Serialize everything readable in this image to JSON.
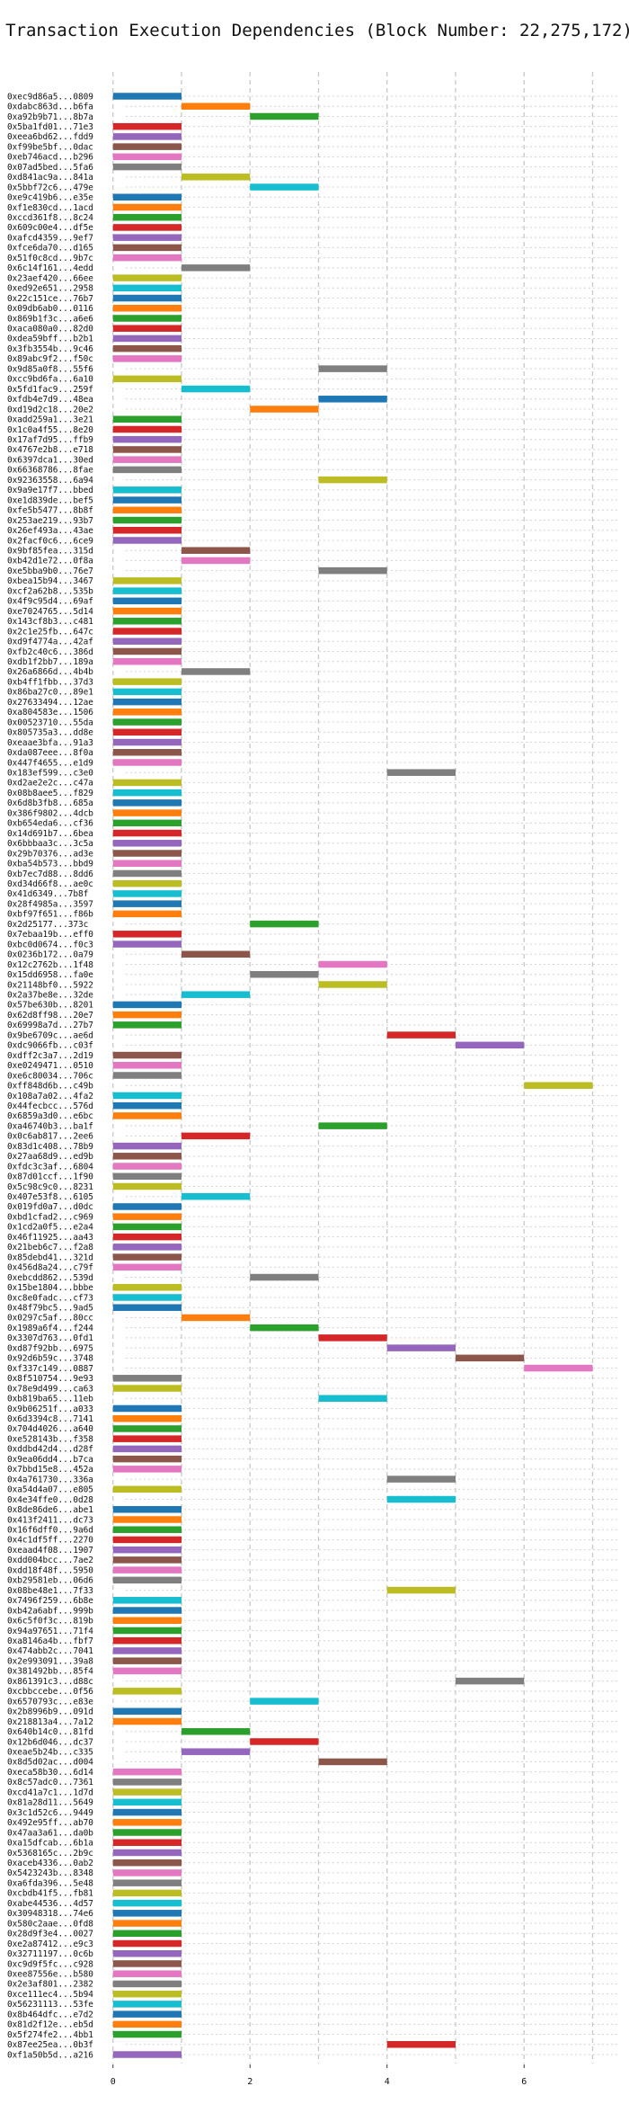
{
  "chart_data": {
    "type": "bar",
    "orientation": "horizontal",
    "title": "Transaction Execution Dependencies (Block Number: 22,275,172)",
    "xlabel": "",
    "ylabel": "",
    "xlim": [
      -0.6,
      7.4
    ],
    "xticks": [
      0,
      2,
      4,
      6
    ],
    "grid": true,
    "bar_duration": 1,
    "palette": {
      "blue": "#1f77b4",
      "orange": "#ff7f0e",
      "green": "#2ca02c",
      "red": "#d62728",
      "purple": "#9467bd",
      "brown": "#8c564b",
      "pink": "#e377c2",
      "gray": "#7f7f7f",
      "olive": "#bcbd22",
      "cyan": "#17becf"
    },
    "color_cycle": [
      "blue",
      "orange",
      "green",
      "red",
      "purple",
      "brown",
      "pink",
      "gray",
      "olive",
      "cyan"
    ],
    "transactions": [
      {
        "label": "0xec9d86a5...0809",
        "start": 0
      },
      {
        "label": "0xdabc863d...b6fa",
        "start": 1
      },
      {
        "label": "0xa92b9b71...8b7a",
        "start": 2
      },
      {
        "label": "0x5ba1fd01...71e3",
        "start": 0
      },
      {
        "label": "0xeea6bd62...fdd9",
        "start": 0
      },
      {
        "label": "0xf99be5bf...0dac",
        "start": 0
      },
      {
        "label": "0xeb746acd...b296",
        "start": 0
      },
      {
        "label": "0x07ad5bed...5fa6",
        "start": 0
      },
      {
        "label": "0xd841ac9a...841a",
        "start": 1
      },
      {
        "label": "0x5bbf72c6...479e",
        "start": 2
      },
      {
        "label": "0xe9c419b6...e35e",
        "start": 0
      },
      {
        "label": "0xf1e830cd...1acd",
        "start": 0
      },
      {
        "label": "0xccd361f8...8c24",
        "start": 0
      },
      {
        "label": "0x609c00e4...df5e",
        "start": 0
      },
      {
        "label": "0xafcd4359...9ef7",
        "start": 0
      },
      {
        "label": "0xfce6da70...d165",
        "start": 0
      },
      {
        "label": "0x51f0c8cd...9b7c",
        "start": 0
      },
      {
        "label": "0x6c14f161...4edd",
        "start": 1
      },
      {
        "label": "0x23aef420...66ee",
        "start": 0
      },
      {
        "label": "0xed92e651...2958",
        "start": 0
      },
      {
        "label": "0x22c151ce...76b7",
        "start": 0
      },
      {
        "label": "0x09db6ab0...0116",
        "start": 0
      },
      {
        "label": "0x869b1f3c...a6e6",
        "start": 0
      },
      {
        "label": "0xaca080a0...82d0",
        "start": 0
      },
      {
        "label": "0xdea59bff...b2b1",
        "start": 0
      },
      {
        "label": "0x3fb3554b...9c46",
        "start": 0
      },
      {
        "label": "0x89abc9f2...f50c",
        "start": 0
      },
      {
        "label": "0x9d85a0f8...55f6",
        "start": 3
      },
      {
        "label": "0xcc9bd6fa...6a10",
        "start": 0
      },
      {
        "label": "0x5fd1fac9...259f",
        "start": 1
      },
      {
        "label": "0xfdb4e7d9...48ea",
        "start": 3
      },
      {
        "label": "0xd19d2c18...20e2",
        "start": 2
      },
      {
        "label": "0xadd259a1...3e21",
        "start": 0
      },
      {
        "label": "0x1c0a4f55...8e20",
        "start": 0
      },
      {
        "label": "0x17af7d95...ffb9",
        "start": 0
      },
      {
        "label": "0x4767e2b8...e718",
        "start": 0
      },
      {
        "label": "0x6397dca1...30ed",
        "start": 0
      },
      {
        "label": "0x66368786...8fae",
        "start": 0
      },
      {
        "label": "0x92363558...6a94",
        "start": 3
      },
      {
        "label": "0x9a9e17f7...bbed",
        "start": 0
      },
      {
        "label": "0xe1d839de...bef5",
        "start": 0
      },
      {
        "label": "0xfe5b5477...8b8f",
        "start": 0
      },
      {
        "label": "0x253ae219...93b7",
        "start": 0
      },
      {
        "label": "0x26ef493a...43ae",
        "start": 0
      },
      {
        "label": "0x2facf0c6...6ce9",
        "start": 0
      },
      {
        "label": "0x9bf85fea...315d",
        "start": 1
      },
      {
        "label": "0xb42d1e72...0f8a",
        "start": 1
      },
      {
        "label": "0xe5bba9b0...76e7",
        "start": 3
      },
      {
        "label": "0xbea15b94...3467",
        "start": 0
      },
      {
        "label": "0xcf2a62b8...535b",
        "start": 0
      },
      {
        "label": "0x4f9c95d4...69af",
        "start": 0
      },
      {
        "label": "0xe7024765...5d14",
        "start": 0
      },
      {
        "label": "0x143cf8b3...c481",
        "start": 0
      },
      {
        "label": "0x2c1e25fb...647c",
        "start": 0
      },
      {
        "label": "0xd9f4774a...42af",
        "start": 0
      },
      {
        "label": "0xfb2c40c6...386d",
        "start": 0
      },
      {
        "label": "0xdb1f2bb7...189a",
        "start": 0
      },
      {
        "label": "0x26a6866d...4b4b",
        "start": 1
      },
      {
        "label": "0xb4ff1fbb...37d3",
        "start": 0
      },
      {
        "label": "0x86ba27c0...89e1",
        "start": 0
      },
      {
        "label": "0x27633494...12ae",
        "start": 0
      },
      {
        "label": "0xa804583e...1506",
        "start": 0
      },
      {
        "label": "0x00523710...55da",
        "start": 0
      },
      {
        "label": "0x805735a3...dd8e",
        "start": 0
      },
      {
        "label": "0xeaae3bfa...91a3",
        "start": 0
      },
      {
        "label": "0xda087eee...8f0a",
        "start": 0
      },
      {
        "label": "0x447f4655...e1d9",
        "start": 0
      },
      {
        "label": "0x183ef599...c3e0",
        "start": 4
      },
      {
        "label": "0xd2ae2e2c...c47a",
        "start": 0
      },
      {
        "label": "0x08b8aee5...f829",
        "start": 0
      },
      {
        "label": "0x6d8b3fb8...685a",
        "start": 0
      },
      {
        "label": "0x386f9802...4dcb",
        "start": 0
      },
      {
        "label": "0xb654eda6...cf36",
        "start": 0
      },
      {
        "label": "0x14d691b7...6bea",
        "start": 0
      },
      {
        "label": "0x6bbbaa3c...3c5a",
        "start": 0
      },
      {
        "label": "0x29b70376...ad3e",
        "start": 0
      },
      {
        "label": "0xba54b573...bbd9",
        "start": 0
      },
      {
        "label": "0xb7ec7d88...8dd6",
        "start": 0
      },
      {
        "label": "0xd34d66f8...ae0c",
        "start": 0
      },
      {
        "label": "0x41d6349...7b8f",
        "start": 0
      },
      {
        "label": "0x28f4985a...3597",
        "start": 0
      },
      {
        "label": "0xbf97f651...f86b",
        "start": 0
      },
      {
        "label": "0x2d25177...373c",
        "start": 2
      },
      {
        "label": "0x7ebaa19b...eff0",
        "start": 0
      },
      {
        "label": "0xbc0d0674...f0c3",
        "start": 0
      },
      {
        "label": "0x0236b172...0a79",
        "start": 1
      },
      {
        "label": "0x12c2762b...1f48",
        "start": 3
      },
      {
        "label": "0x15dd6958...fa0e",
        "start": 2
      },
      {
        "label": "0x21148bf0...5922",
        "start": 3
      },
      {
        "label": "0x2a37be8e...32de",
        "start": 1
      },
      {
        "label": "0x57be630b...8201",
        "start": 0
      },
      {
        "label": "0x62d8ff98...20e7",
        "start": 0
      },
      {
        "label": "0x69998a7d...27b7",
        "start": 0
      },
      {
        "label": "0x9be6709c...ae6d",
        "start": 4
      },
      {
        "label": "0xdc9066fb...c03f",
        "start": 5
      },
      {
        "label": "0xdff2c3a7...2d19",
        "start": 0
      },
      {
        "label": "0xe0249471...0510",
        "start": 0
      },
      {
        "label": "0xe6c80034...706c",
        "start": 0
      },
      {
        "label": "0xff848d6b...c49b",
        "start": 6
      },
      {
        "label": "0x108a7a02...4fa2",
        "start": 0
      },
      {
        "label": "0x44fecbcc...576d",
        "start": 0
      },
      {
        "label": "0x6859a3d0...e6bc",
        "start": 0
      },
      {
        "label": "0xa46740b3...ba1f",
        "start": 3
      },
      {
        "label": "0x0c6ab817...2ee6",
        "start": 1
      },
      {
        "label": "0x83d1c408...78b9",
        "start": 0
      },
      {
        "label": "0x27aa68d9...ed9b",
        "start": 0
      },
      {
        "label": "0xfdc3c3af...6804",
        "start": 0
      },
      {
        "label": "0x87d01ccf...1f90",
        "start": 0
      },
      {
        "label": "0x5c98c9c0...8231",
        "start": 0
      },
      {
        "label": "0x407e53f8...6105",
        "start": 1
      },
      {
        "label": "0x019fd0a7...d0dc",
        "start": 0
      },
      {
        "label": "0xbd1cfad2...c969",
        "start": 0
      },
      {
        "label": "0x1cd2a0f5...e2a4",
        "start": 0
      },
      {
        "label": "0x46f11925...aa43",
        "start": 0
      },
      {
        "label": "0x21beb6c7...f2a8",
        "start": 0
      },
      {
        "label": "0x85debd41...321d",
        "start": 0
      },
      {
        "label": "0x456d8a24...c79f",
        "start": 0
      },
      {
        "label": "0xebcdd862...539d",
        "start": 2
      },
      {
        "label": "0x15be1804...bbbe",
        "start": 0
      },
      {
        "label": "0xc8e0fadc...cf73",
        "start": 0
      },
      {
        "label": "0x48f79bc5...9ad5",
        "start": 0
      },
      {
        "label": "0x0297c5af...80cc",
        "start": 1
      },
      {
        "label": "0x1989a6f4...f244",
        "start": 2
      },
      {
        "label": "0x3307d763...0fd1",
        "start": 3
      },
      {
        "label": "0xd87f92bb...6975",
        "start": 4
      },
      {
        "label": "0x92d6b59c...3748",
        "start": 5
      },
      {
        "label": "0xf337c149...0887",
        "start": 6
      },
      {
        "label": "0x8f510754...9e93",
        "start": 0
      },
      {
        "label": "0x78e9d499...ca63",
        "start": 0
      },
      {
        "label": "0xb819ba65...11eb",
        "start": 3
      },
      {
        "label": "0x9b06251f...a033",
        "start": 0
      },
      {
        "label": "0x6d3394c8...7141",
        "start": 0
      },
      {
        "label": "0x704d4026...a640",
        "start": 0
      },
      {
        "label": "0xe528143b...f358",
        "start": 0
      },
      {
        "label": "0xddbd42d4...d28f",
        "start": 0
      },
      {
        "label": "0x9ea06dd4...b7ca",
        "start": 0
      },
      {
        "label": "0x7bbd15e8...452a",
        "start": 0
      },
      {
        "label": "0x4a761730...336a",
        "start": 4
      },
      {
        "label": "0xa54d4a07...e805",
        "start": 0
      },
      {
        "label": "0x4e34ffe0...0d28",
        "start": 4
      },
      {
        "label": "0x8de86de6...abe1",
        "start": 0
      },
      {
        "label": "0x413f2411...dc73",
        "start": 0
      },
      {
        "label": "0x16f6dff0...9a6d",
        "start": 0
      },
      {
        "label": "0x4c1df5ff...2270",
        "start": 0
      },
      {
        "label": "0xeaad4f08...1907",
        "start": 0
      },
      {
        "label": "0xdd004bcc...7ae2",
        "start": 0
      },
      {
        "label": "0xdd18f48f...5950",
        "start": 0
      },
      {
        "label": "0xb29581eb...06d6",
        "start": 0
      },
      {
        "label": "0x08be48e1...7f33",
        "start": 4
      },
      {
        "label": "0x7496f259...6b8e",
        "start": 0
      },
      {
        "label": "0xb42a6abf...999b",
        "start": 0
      },
      {
        "label": "0x6c5f0f3c...819b",
        "start": 0
      },
      {
        "label": "0x94a97651...71f4",
        "start": 0
      },
      {
        "label": "0xa8146a4b...fbf7",
        "start": 0
      },
      {
        "label": "0x474abb2c...7041",
        "start": 0
      },
      {
        "label": "0x2e993091...39a8",
        "start": 0
      },
      {
        "label": "0x381492bb...85f4",
        "start": 0
      },
      {
        "label": "0x861391c3...d88c",
        "start": 5
      },
      {
        "label": "0xcbbccebe...0f56",
        "start": 0
      },
      {
        "label": "0x6570793c...e83e",
        "start": 2
      },
      {
        "label": "0x2b8996b9...091d",
        "start": 0
      },
      {
        "label": "0x218813a4...7a12",
        "start": 0
      },
      {
        "label": "0x640b14c0...81fd",
        "start": 1
      },
      {
        "label": "0x12b6d046...dc37",
        "start": 2
      },
      {
        "label": "0xeae5b24b...c335",
        "start": 1
      },
      {
        "label": "0x8d5d02ac...d004",
        "start": 3
      },
      {
        "label": "0xeca58b30...6d14",
        "start": 0
      },
      {
        "label": "0x8c57adc0...7361",
        "start": 0
      },
      {
        "label": "0xcd41a7c1...1d7d",
        "start": 0
      },
      {
        "label": "0x81a28d11...5649",
        "start": 0
      },
      {
        "label": "0x3c1d52c6...9449",
        "start": 0
      },
      {
        "label": "0x492e95ff...ab70",
        "start": 0
      },
      {
        "label": "0x47aa3a61...da0b",
        "start": 0
      },
      {
        "label": "0xa15dfcab...6b1a",
        "start": 0
      },
      {
        "label": "0x5368165c...2b9c",
        "start": 0
      },
      {
        "label": "0xaceb4336...0ab2",
        "start": 0
      },
      {
        "label": "0x5423243b...8348",
        "start": 0
      },
      {
        "label": "0xa6fda396...5e48",
        "start": 0
      },
      {
        "label": "0xcbdb41f5...fb81",
        "start": 0
      },
      {
        "label": "0xabe44536...4d57",
        "start": 0
      },
      {
        "label": "0x30948318...74e6",
        "start": 0
      },
      {
        "label": "0x580c2aae...0fd8",
        "start": 0
      },
      {
        "label": "0x28d9f3e4...0027",
        "start": 0
      },
      {
        "label": "0xe2a87412...e9c3",
        "start": 0
      },
      {
        "label": "0x32711197...0c6b",
        "start": 0
      },
      {
        "label": "0xc9d9f5fc...c928",
        "start": 0
      },
      {
        "label": "0xee87556e...b580",
        "start": 0
      },
      {
        "label": "0x2e3af801...2382",
        "start": 0
      },
      {
        "label": "0xce111ec4...5b94",
        "start": 0
      },
      {
        "label": "0x56231113...53fe",
        "start": 0
      },
      {
        "label": "0x8b464dfc...e7d2",
        "start": 0
      },
      {
        "label": "0x81d2f12e...eb5d",
        "start": 0
      },
      {
        "label": "0x5f274fe2...4bb1",
        "start": 0
      },
      {
        "label": "0x87ee25ea...0b3f",
        "start": 4
      },
      {
        "label": "0xf1a50b5d...a216",
        "start": 0
      }
    ]
  }
}
